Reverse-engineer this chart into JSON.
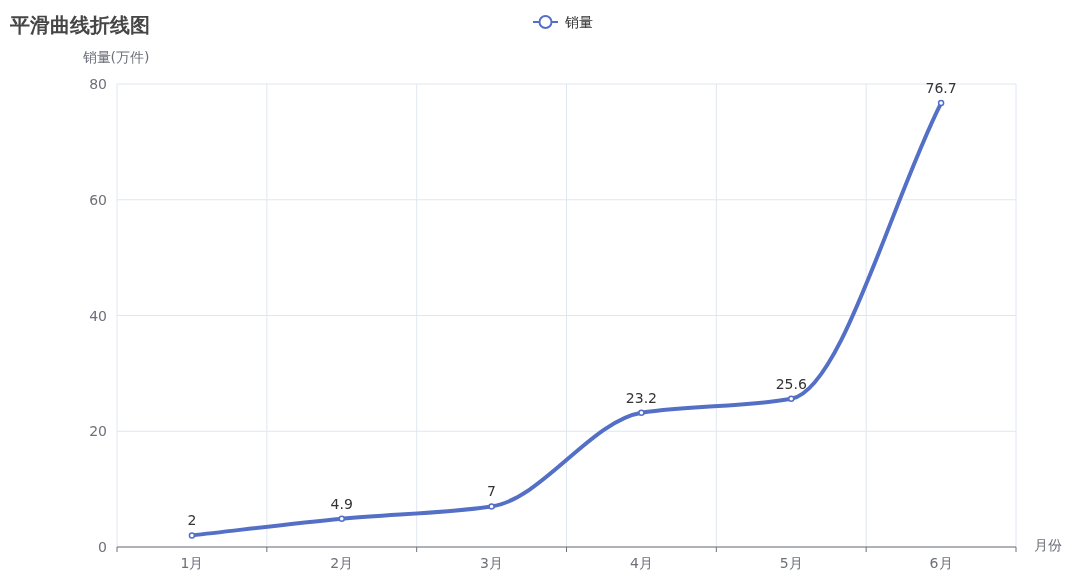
{
  "chart_data": {
    "type": "line",
    "title": "平滑曲线折线图",
    "xlabel": "月份",
    "ylabel": "销量(万件)",
    "categories": [
      "1月",
      "2月",
      "3月",
      "4月",
      "5月",
      "6月"
    ],
    "series": [
      {
        "name": "销量",
        "color": "#5470c6",
        "values": [
          2,
          4.9,
          7,
          23.2,
          25.6,
          76.7
        ]
      }
    ],
    "ylim": [
      0,
      80
    ],
    "yticks": [
      0,
      20,
      40,
      60,
      80
    ],
    "grid": true,
    "legend": "top",
    "marker": "circle",
    "data_labels": true
  }
}
